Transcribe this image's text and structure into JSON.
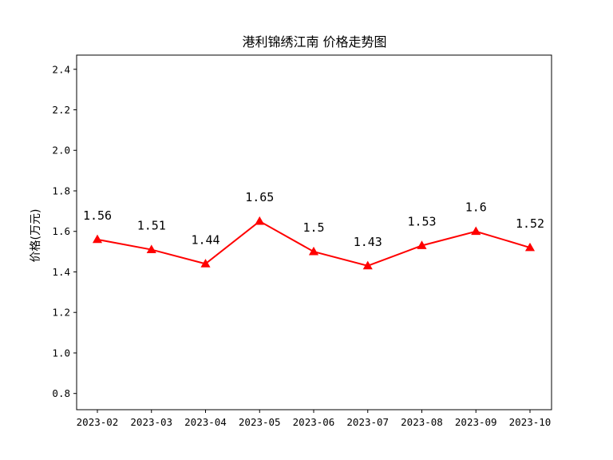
{
  "chart_data": {
    "type": "line",
    "title": "港利锦绣江南 价格走势图",
    "xlabel": "",
    "ylabel": "价格(万元)",
    "categories": [
      "2023-02",
      "2023-03",
      "2023-04",
      "2023-05",
      "2023-06",
      "2023-07",
      "2023-08",
      "2023-09",
      "2023-10"
    ],
    "values": [
      1.56,
      1.51,
      1.44,
      1.65,
      1.5,
      1.43,
      1.53,
      1.6,
      1.52
    ],
    "data_labels": [
      "1.56",
      "1.51",
      "1.44",
      "1.65",
      "1.5",
      "1.43",
      "1.53",
      "1.6",
      "1.52"
    ],
    "ylim": [
      0.72,
      2.47
    ],
    "yticks": [
      "0.8",
      "1.0",
      "1.2",
      "1.4",
      "1.6",
      "1.8",
      "2.0",
      "2.2",
      "2.4"
    ],
    "grid": false,
    "line_color": "#ff0000",
    "marker": "triangle"
  }
}
